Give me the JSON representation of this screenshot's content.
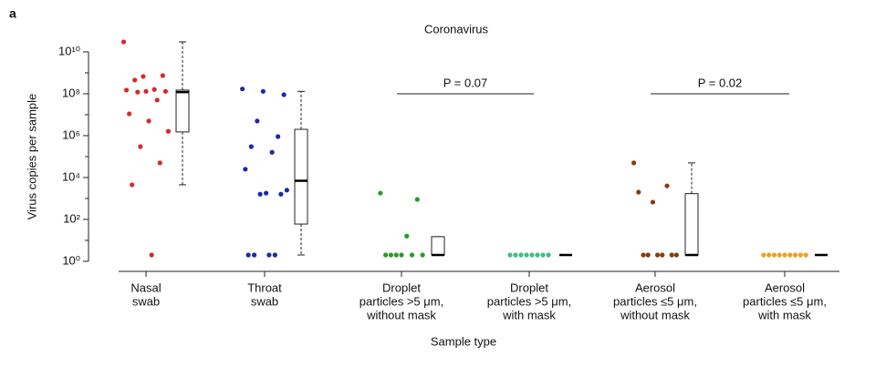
{
  "chart_data": {
    "type": "strip_box",
    "panel": "a",
    "title": "Coronavirus",
    "y_label": "Virus copies per sample",
    "x_label": "Sample type",
    "log_y": true,
    "ylim": [
      0.33,
      30000000000
    ],
    "yticks": [
      {
        "value": 1,
        "label": "10⁰"
      },
      {
        "value": 100,
        "label": "10²"
      },
      {
        "value": 10000,
        "label": "10⁴"
      },
      {
        "value": 1000000,
        "label": "10⁶"
      },
      {
        "value": 100000000,
        "label": "10⁸"
      },
      {
        "value": 10000000000,
        "label": "10¹⁰"
      }
    ],
    "minor_yticks": [
      10,
      1000,
      100000,
      10000000,
      1000000000
    ],
    "categories": [
      [
        "Nasal",
        "swab"
      ],
      [
        "Throat",
        "swab"
      ],
      [
        "Droplet",
        "particles >5 μm,",
        "without mask"
      ],
      [
        "Droplet",
        "particles >5 μm,",
        "with mask"
      ],
      [
        "Aerosol",
        "particles ≤5 μm,",
        "without mask"
      ],
      [
        "Aerosol",
        "particles ≤5 μm,",
        "with mask"
      ]
    ],
    "groups": [
      {
        "color": "#d42a2a",
        "values": [
          30000000000,
          670000000,
          740000000,
          450000000,
          160000000,
          150000000,
          130000000,
          130000000,
          120000000,
          50000000,
          11000000,
          5000000,
          1600000,
          300000,
          50000,
          4500,
          2
        ],
        "box": {
          "whislo": 4500,
          "q1": 1500000,
          "med": 120000000,
          "q3": 150000000,
          "whishi": 30000000000
        }
      },
      {
        "color": "#1a2aa8",
        "values": [
          170000000,
          130000000,
          90000000,
          5000000,
          900000,
          300000,
          160000,
          25000,
          1800,
          2500,
          1600,
          1600,
          2,
          2,
          2,
          2
        ],
        "box": {
          "whislo": 2,
          "q1": 60,
          "med": 7000,
          "q3": 2000000,
          "whishi": 130000000
        }
      },
      {
        "color": "#2a9a2a",
        "values": [
          1800,
          900,
          16,
          2,
          2,
          2,
          2,
          2,
          2
        ],
        "box": {
          "whislo": 2,
          "q1": 2,
          "med": 2,
          "q3": 15,
          "whishi": 15
        }
      },
      {
        "color": "#3cc08a",
        "values": [
          2,
          2,
          2,
          2,
          2,
          2,
          2,
          2
        ],
        "box": {
          "whislo": 2,
          "q1": 2,
          "med": 2,
          "q3": 2,
          "whishi": 2
        }
      },
      {
        "color": "#8b3a0e",
        "values": [
          50000,
          4000,
          670,
          2000,
          2,
          2,
          2,
          2,
          2,
          2
        ],
        "box": {
          "whislo": 2,
          "q1": 2,
          "med": 2,
          "q3": 1700,
          "whishi": 50000
        }
      },
      {
        "color": "#f0a020",
        "values": [
          2,
          2,
          2,
          2,
          2,
          2,
          2,
          2,
          2
        ],
        "box": {
          "whislo": 2,
          "q1": 2,
          "med": 2,
          "q3": 2,
          "whishi": 2
        }
      }
    ],
    "annotations": [
      {
        "text": "P = 0.07",
        "from": 2,
        "to": 3
      },
      {
        "text": "P = 0.02",
        "from": 4,
        "to": 5
      }
    ]
  }
}
